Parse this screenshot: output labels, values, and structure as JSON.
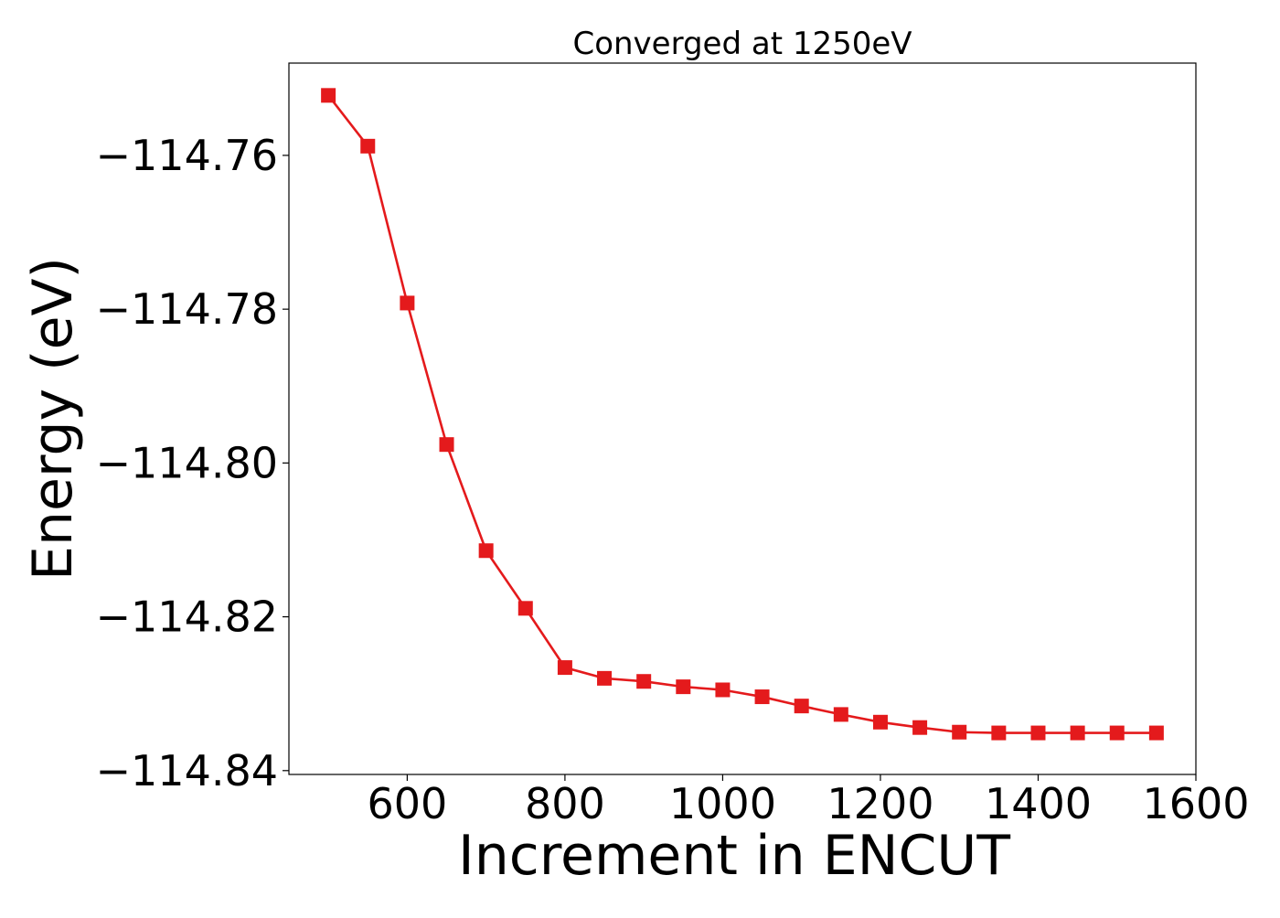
{
  "chart_data": {
    "type": "line",
    "title": "Converged at 1250eV",
    "xlabel": "Increment in ENCUT",
    "ylabel": "Energy (eV)",
    "xlim": [
      450,
      1600
    ],
    "ylim": [
      -114.8405,
      -114.748
    ],
    "xticks": [
      600,
      800,
      1000,
      1200,
      1400,
      1600
    ],
    "yticks": [
      -114.76,
      -114.78,
      -114.8,
      -114.82,
      -114.84
    ],
    "xtick_labels": [
      "600",
      "800",
      "1000",
      "1200",
      "1400",
      "1600"
    ],
    "ytick_labels": [
      "−114.76",
      "−114.78",
      "−114.80",
      "−114.82",
      "−114.84"
    ],
    "grid": false,
    "marker": "square",
    "color": "#e41a1c",
    "x": [
      500,
      550,
      600,
      650,
      700,
      750,
      800,
      850,
      900,
      950,
      1000,
      1050,
      1100,
      1150,
      1200,
      1250,
      1300,
      1350,
      1400,
      1450,
      1500,
      1550
    ],
    "series": [
      {
        "values": [
          -114.7522,
          -114.7588,
          -114.7792,
          -114.7976,
          -114.8114,
          -114.8189,
          -114.8266,
          -114.828,
          -114.8284,
          -114.8291,
          -114.8295,
          -114.8304,
          -114.8316,
          -114.8327,
          -114.8337,
          -114.8344,
          -114.835,
          -114.8351,
          -114.8351,
          -114.8351,
          -114.8351,
          -114.8351
        ]
      }
    ]
  }
}
